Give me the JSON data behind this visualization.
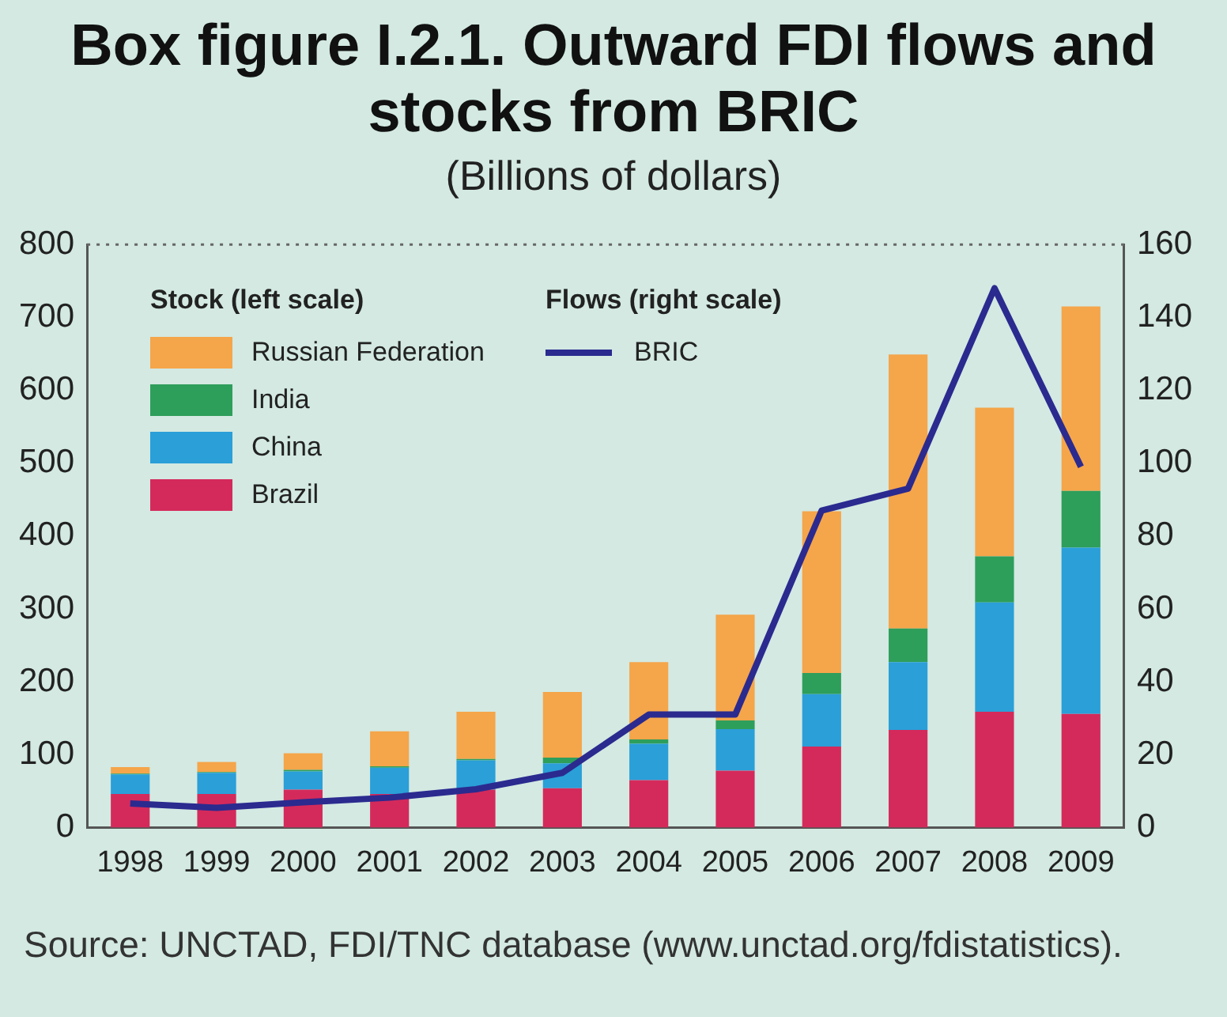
{
  "chart_data": {
    "type": "bar",
    "title": "Box figure I.2.1. Outward FDI flows and stocks from BRIC",
    "subtitle": "(Billions of dollars)",
    "categories": [
      "1998",
      "1999",
      "2000",
      "2001",
      "2002",
      "2003",
      "2004",
      "2005",
      "2006",
      "2007",
      "2008",
      "2009"
    ],
    "stacked": true,
    "series": [
      {
        "name": "Brazil",
        "color": "#d42a5b",
        "values": [
          46,
          46,
          52,
          46,
          52,
          54,
          65,
          78,
          111,
          134,
          159,
          156
        ]
      },
      {
        "name": "China",
        "color": "#2a9fd8",
        "values": [
          27,
          29,
          25,
          36,
          40,
          34,
          50,
          57,
          72,
          93,
          150,
          228
        ]
      },
      {
        "name": "India",
        "color": "#2e9e5b",
        "values": [
          1,
          1,
          2,
          2,
          2,
          8,
          6,
          12,
          29,
          46,
          63,
          78
        ]
      },
      {
        "name": "Russian Federation",
        "color": "#f5a54a",
        "values": [
          9,
          14,
          23,
          48,
          65,
          90,
          106,
          145,
          222,
          376,
          204,
          253
        ]
      },
      {
        "name": "BRIC",
        "type": "line",
        "axis": "y2",
        "color": "#2b2a8f",
        "values": [
          6.6,
          5.4,
          6.9,
          8.2,
          10.5,
          15,
          31,
          31,
          87,
          93,
          148,
          99
        ]
      }
    ],
    "ylim": [
      0,
      800
    ],
    "yticks": [
      0,
      100,
      200,
      300,
      400,
      500,
      600,
      700,
      800
    ],
    "y2lim": [
      0,
      160
    ],
    "y2ticks": [
      0,
      20,
      40,
      60,
      80,
      100,
      120,
      140,
      160
    ],
    "grid": false,
    "legend": "top left",
    "marker": "none",
    "line_style": "solid",
    "annotations": [
      "Stock (left scale)",
      "Flows (right scale)",
      "Source: UNCTAD, FDI/TNC database (www.unctad.org/fdistatistics)."
    ]
  }
}
